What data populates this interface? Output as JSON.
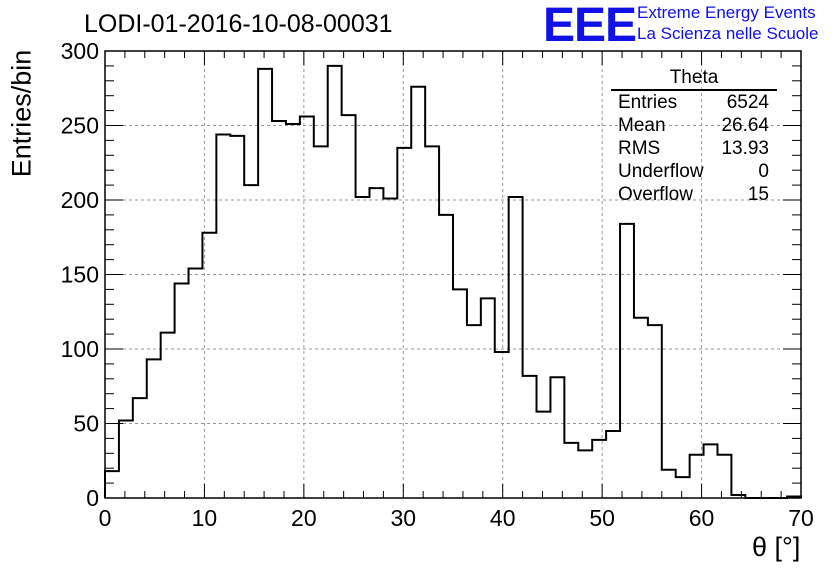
{
  "header": {
    "run_title": "LODI-01-2016-10-08-00031"
  },
  "logo": {
    "mark": "EEE",
    "line1": "Extreme Energy Events",
    "line2": "La Scienza nelle Scuole",
    "color": "#1010e8"
  },
  "stats": {
    "title": "Theta",
    "rows": [
      {
        "label": "Entries",
        "value": "6524"
      },
      {
        "label": "Mean",
        "value": "26.64"
      },
      {
        "label": "RMS",
        "value": "13.93"
      },
      {
        "label": "Underflow",
        "value": "0"
      },
      {
        "label": "Overflow",
        "value": "15"
      }
    ]
  },
  "chart_data": {
    "type": "bar",
    "histogram": true,
    "xlabel": "θ [°]",
    "ylabel": "Entries/bin",
    "xlim": [
      0,
      70
    ],
    "ylim": [
      0,
      300
    ],
    "bin_width": 1.4,
    "bin_edges_start": 0,
    "values": [
      18,
      52,
      67,
      93,
      111,
      144,
      154,
      178,
      244,
      243,
      210,
      288,
      253,
      251,
      256,
      236,
      290,
      257,
      202,
      208,
      201,
      235,
      276,
      236,
      190,
      140,
      116,
      134,
      98,
      202,
      82,
      58,
      81,
      37,
      32,
      39,
      45,
      184,
      121,
      116,
      19,
      14,
      29,
      36,
      29,
      2,
      0,
      0,
      0,
      1
    ],
    "xticks": [
      "0",
      "10",
      "20",
      "30",
      "40",
      "50",
      "60",
      "70"
    ],
    "yticks": [
      "0",
      "50",
      "100",
      "150",
      "200",
      "250",
      "300"
    ],
    "grid": true,
    "line_color": "#000000"
  }
}
